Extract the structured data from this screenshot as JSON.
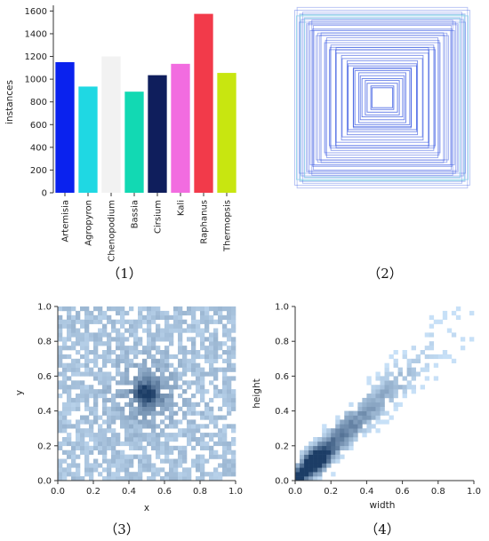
{
  "panels": {
    "p1": {
      "caption": "（1）"
    },
    "p2": {
      "caption": "（2）"
    },
    "p3": {
      "caption": "（3）"
    },
    "p4": {
      "caption": "（4）"
    }
  },
  "chart_data": [
    {
      "type": "bar",
      "panel": "1",
      "categories": [
        "Artemisia",
        "Agropyron",
        "Chenopodium",
        "Bassia",
        "Cirsium",
        "Kali",
        "Raphanus",
        "Thermopsis"
      ],
      "values": [
        1150,
        935,
        1200,
        890,
        1035,
        1135,
        1575,
        1055
      ],
      "colors": [
        "#0a22ee",
        "#1fd8e3",
        "#f2f2f2",
        "#12d9b3",
        "#0f1e5c",
        "#f26ce0",
        "#f23a4a",
        "#c8e610"
      ],
      "ylabel": "instances",
      "ylim": [
        0,
        1650
      ],
      "yticks": [
        "0",
        "200",
        "400",
        "600",
        "800",
        "1000",
        "1200",
        "1400",
        "1600"
      ],
      "grid": false
    },
    {
      "type": "other",
      "panel": "2",
      "description_kind": "overlaid centered bounding boxes",
      "box_sizes": [
        1.0,
        0.99,
        0.97,
        0.96,
        0.95,
        0.94,
        0.93,
        0.92,
        0.9,
        0.88,
        0.87,
        0.86,
        0.85,
        0.84,
        0.83,
        0.8,
        0.79,
        0.77,
        0.75,
        0.74,
        0.72,
        0.7,
        0.68,
        0.66,
        0.64,
        0.62,
        0.6,
        0.58,
        0.55,
        0.53,
        0.5,
        0.48,
        0.45,
        0.43,
        0.4,
        0.38,
        0.35,
        0.33,
        0.3,
        0.28,
        0.25,
        0.22,
        0.2,
        0.17,
        0.14,
        0.12
      ],
      "colors": {
        "stroke": "#2d4fe0",
        "stroke_light": "#8fd6e8"
      }
    },
    {
      "type": "heatmap",
      "panel": "3",
      "xlabel": "x",
      "ylabel": "y",
      "xlim": [
        0,
        1
      ],
      "ylim": [
        0,
        1
      ],
      "xticks": [
        "0.0",
        "0.2",
        "0.4",
        "0.6",
        "0.8",
        "1.0"
      ],
      "yticks": [
        "0.0",
        "0.2",
        "0.4",
        "0.6",
        "0.8",
        "1.0"
      ],
      "center": [
        0.5,
        0.5
      ],
      "bins": 40,
      "colors": {
        "low": "#c7e0f7",
        "high": "#1c3d66"
      }
    },
    {
      "type": "heatmap",
      "panel": "4",
      "xlabel": "width",
      "ylabel": "height",
      "xlim": [
        0,
        1
      ],
      "ylim": [
        0,
        1
      ],
      "xticks": [
        "0.0",
        "0.2",
        "0.4",
        "0.6",
        "0.8",
        "1.0"
      ],
      "yticks": [
        "0.0",
        "0.2",
        "0.4",
        "0.6",
        "0.8",
        "1.0"
      ],
      "peak": [
        0.12,
        0.12
      ],
      "bins": 40,
      "colors": {
        "low": "#c7e0f7",
        "high": "#1c3d66"
      }
    }
  ]
}
